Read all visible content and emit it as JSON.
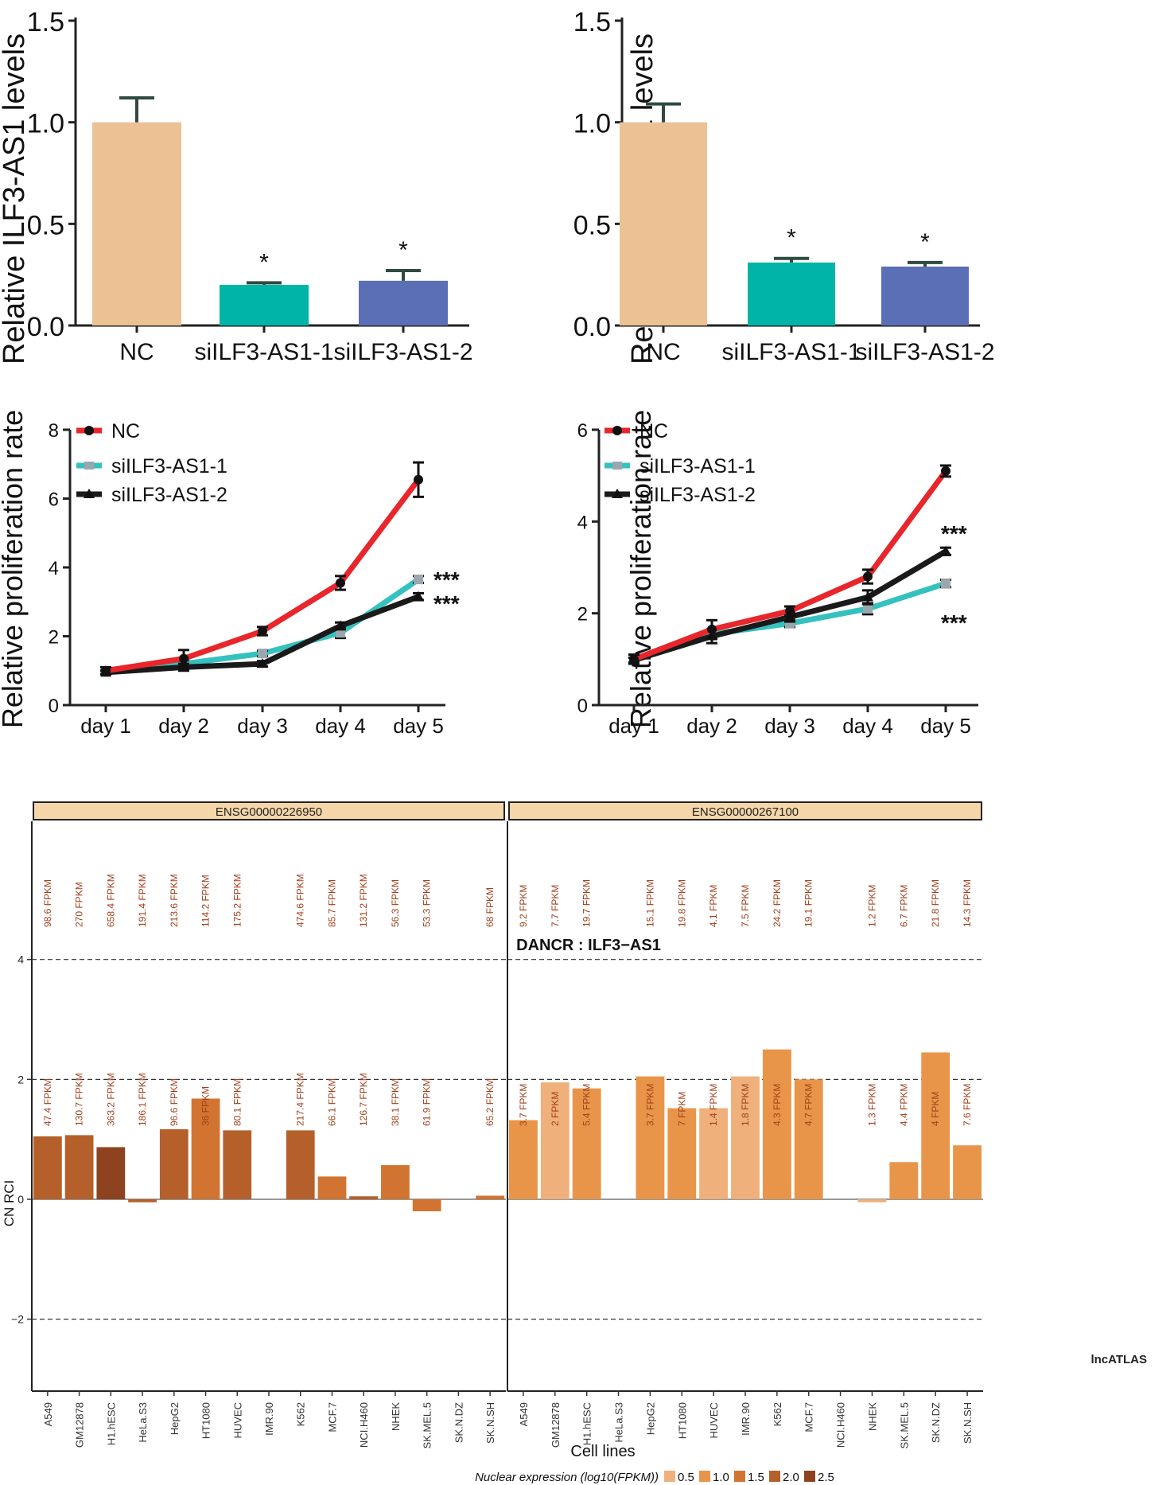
{
  "chart_data": [
    {
      "id": "bar_left",
      "type": "bar",
      "ylabel": "Relative ILF3-AS1 levels",
      "ylim": [
        0,
        1.5
      ],
      "yticks": [
        "0.0",
        "0.5",
        "1.0",
        "1.5"
      ],
      "categories": [
        "NC",
        "siILF3-AS1-1",
        "siILF3-AS1-2"
      ],
      "values": [
        1.0,
        0.2,
        0.22
      ],
      "errors": [
        0.12,
        0.01,
        0.05
      ],
      "colors": [
        "#ECC194",
        "#00B5A7",
        "#5B6FB7"
      ],
      "annotations": [
        "",
        "*",
        "*"
      ]
    },
    {
      "id": "bar_right",
      "type": "bar",
      "ylabel": "Relative ILF3-AS1 levels",
      "ylim": [
        0,
        1.5
      ],
      "yticks": [
        "0.0",
        "0.5",
        "1.0",
        "1.5"
      ],
      "categories": [
        "NC",
        "siILF3-AS1-1",
        "siILF3-AS1-2"
      ],
      "values": [
        1.0,
        0.31,
        0.29
      ],
      "errors": [
        0.09,
        0.02,
        0.02
      ],
      "colors": [
        "#ECC194",
        "#00B5A7",
        "#5B6FB7"
      ],
      "annotations": [
        "",
        "*",
        "*"
      ]
    },
    {
      "id": "line_left",
      "type": "line",
      "ylabel": "Relative proliferation rate",
      "ylim": [
        0,
        8
      ],
      "yticks": [
        "0",
        "2",
        "4",
        "6",
        "8"
      ],
      "categories": [
        "day 1",
        "day 2",
        "day 3",
        "day 4",
        "day 5"
      ],
      "series": [
        {
          "name": "NC",
          "color": "#E8262B",
          "values": [
            1.0,
            1.35,
            2.15,
            3.55,
            6.55
          ],
          "errors": [
            0.1,
            0.25,
            0.12,
            0.2,
            0.5
          ]
        },
        {
          "name": "siILF3-AS1-1",
          "color": "#35C1BE",
          "values": [
            0.95,
            1.2,
            1.5,
            2.1,
            3.65
          ],
          "errors": [
            0.05,
            0.1,
            0.08,
            0.15,
            0.1
          ]
        },
        {
          "name": "siILF3-AS1-2",
          "color": "#1A1A1A",
          "values": [
            0.95,
            1.1,
            1.2,
            2.3,
            3.15
          ],
          "errors": [
            0.05,
            0.1,
            0.08,
            0.1,
            0.1
          ]
        }
      ],
      "significance": [
        "***",
        "***"
      ]
    },
    {
      "id": "line_right",
      "type": "line",
      "ylabel": "Relative proliferation rate",
      "ylim": [
        0,
        6
      ],
      "yticks": [
        "0",
        "2",
        "4",
        "6"
      ],
      "categories": [
        "day 1",
        "day 2",
        "day 3",
        "day 4",
        "day 5"
      ],
      "series": [
        {
          "name": "NC",
          "color": "#E8262B",
          "values": [
            1.0,
            1.65,
            2.05,
            2.8,
            5.1
          ],
          "errors": [
            0.1,
            0.2,
            0.1,
            0.15,
            0.12
          ]
        },
        {
          "name": "siILF3-AS1-1",
          "color": "#35C1BE",
          "values": [
            0.98,
            1.55,
            1.78,
            2.1,
            2.65
          ],
          "errors": [
            0.05,
            0.1,
            0.08,
            0.12,
            0.08
          ]
        },
        {
          "name": "siILF3-AS1-2",
          "color": "#1A1A1A",
          "values": [
            0.98,
            1.5,
            1.92,
            2.35,
            3.35
          ],
          "errors": [
            0.05,
            0.15,
            0.1,
            0.15,
            0.08
          ]
        }
      ],
      "significance": [
        "***",
        "***"
      ]
    },
    {
      "id": "lncatlas",
      "type": "bar",
      "title": "DANCR : ILF3−AS1",
      "ylabel": "CN RCI",
      "xlabel": "Cell lines",
      "ylim": [
        -3.2,
        6.2
      ],
      "yticks": [
        "4",
        "2",
        "0",
        "−2"
      ],
      "ytick_values": [
        4,
        2,
        0,
        -2
      ],
      "source_label": "lncATLAS",
      "legend_title": "Nuclear expression (log10(FPKM))",
      "legend_levels": [
        {
          "label": "0.5",
          "color": "#F0B07C"
        },
        {
          "label": "1.0",
          "color": "#E99549"
        },
        {
          "label": "1.5",
          "color": "#D27431"
        },
        {
          "label": "2.0",
          "color": "#B5602B"
        },
        {
          "label": "2.5",
          "color": "#8E4320"
        }
      ],
      "panels": [
        {
          "gene": "ENSG00000226950",
          "cells": [
            {
              "cell": "A549",
              "rci": 1.05,
              "level": 3,
              "top": "98.6 FPKM",
              "bottom": "47.4 FPKM"
            },
            {
              "cell": "GM12878",
              "rci": 1.07,
              "level": 3,
              "top": "270 FPKM",
              "bottom": "130.7 FPKM"
            },
            {
              "cell": "H1.hESC",
              "rci": 0.87,
              "level": 4,
              "top": "658.4 FPKM",
              "bottom": "363.2 FPKM"
            },
            {
              "cell": "HeLa.S3",
              "rci": -0.05,
              "level": 3,
              "top": "191.4 FPKM",
              "bottom": "186.1 FPKM"
            },
            {
              "cell": "HepG2",
              "rci": 1.17,
              "level": 3,
              "top": "213.6 FPKM",
              "bottom": "96.6 FPKM"
            },
            {
              "cell": "HT1080",
              "rci": 1.68,
              "level": 2,
              "top": "114.2 FPKM",
              "bottom": "36 FPKM"
            },
            {
              "cell": "HUVEC",
              "rci": 1.15,
              "level": 3,
              "top": "175.2 FPKM",
              "bottom": "80.1 FPKM"
            },
            {
              "cell": "IMR.90",
              "rci": null,
              "level": null,
              "top": "",
              "bottom": ""
            },
            {
              "cell": "K562",
              "rci": 1.15,
              "level": 3,
              "top": "474.6 FPKM",
              "bottom": "217.4 FPKM"
            },
            {
              "cell": "MCF.7",
              "rci": 0.38,
              "level": 2,
              "top": "85.7 FPKM",
              "bottom": "66.1 FPKM"
            },
            {
              "cell": "NCI.H460",
              "rci": 0.05,
              "level": 3,
              "top": "131.2 FPKM",
              "bottom": "126.7 FPKM"
            },
            {
              "cell": "NHEK",
              "rci": 0.57,
              "level": 2,
              "top": "56.3 FPKM",
              "bottom": "38.1 FPKM"
            },
            {
              "cell": "SK.MEL.5",
              "rci": -0.2,
              "level": 2,
              "top": "53.3 FPKM",
              "bottom": "61.9 FPKM"
            },
            {
              "cell": "SK.N.DZ",
              "rci": null,
              "level": null,
              "top": "",
              "bottom": ""
            },
            {
              "cell": "SK.N.SH",
              "rci": 0.06,
              "level": 2,
              "top": "68 FPKM",
              "bottom": "65.2 FPKM"
            }
          ]
        },
        {
          "gene": "ENSG00000267100",
          "cells": [
            {
              "cell": "A549",
              "rci": 1.32,
              "level": 1,
              "top": "9.2 FPKM",
              "bottom": "3.7 FPKM"
            },
            {
              "cell": "GM12878",
              "rci": 1.95,
              "level": 0,
              "top": "7.7 FPKM",
              "bottom": "2 FPKM"
            },
            {
              "cell": "H1.hESC",
              "rci": 1.85,
              "level": 1,
              "top": "19.7 FPKM",
              "bottom": "5.4 FPKM"
            },
            {
              "cell": "HeLa.S3",
              "rci": null,
              "level": null,
              "top": "",
              "bottom": ""
            },
            {
              "cell": "HepG2",
              "rci": 2.05,
              "level": 1,
              "top": "15.1 FPKM",
              "bottom": "3.7 FPKM"
            },
            {
              "cell": "HT1080",
              "rci": 1.52,
              "level": 1,
              "top": "19.8 FPKM",
              "bottom": "7 FPKM"
            },
            {
              "cell": "HUVEC",
              "rci": 1.52,
              "level": 0,
              "top": "4.1 FPKM",
              "bottom": "1.4 FPKM"
            },
            {
              "cell": "IMR.90",
              "rci": 2.05,
              "level": 0,
              "top": "7.5 FPKM",
              "bottom": "1.8 FPKM"
            },
            {
              "cell": "K562",
              "rci": 2.5,
              "level": 1,
              "top": "24.2 FPKM",
              "bottom": "4.3 FPKM"
            },
            {
              "cell": "MCF.7",
              "rci": 2.0,
              "level": 1,
              "top": "19.1 FPKM",
              "bottom": "4.7 FPKM"
            },
            {
              "cell": "NCI.H460",
              "rci": null,
              "level": null,
              "top": "",
              "bottom": ""
            },
            {
              "cell": "NHEK",
              "rci": -0.05,
              "level": 0,
              "top": "1.2 FPKM",
              "bottom": "1.3 FPKM"
            },
            {
              "cell": "SK.MEL.5",
              "rci": 0.62,
              "level": 1,
              "top": "6.7 FPKM",
              "bottom": "4.4 FPKM"
            },
            {
              "cell": "SK.N.DZ",
              "rci": 2.45,
              "level": 1,
              "top": "21.8 FPKM",
              "bottom": "4 FPKM"
            },
            {
              "cell": "SK.N.SH",
              "rci": 0.9,
              "level": 1,
              "top": "14.3 FPKM",
              "bottom": "7.6 FPKM"
            }
          ]
        }
      ]
    }
  ]
}
